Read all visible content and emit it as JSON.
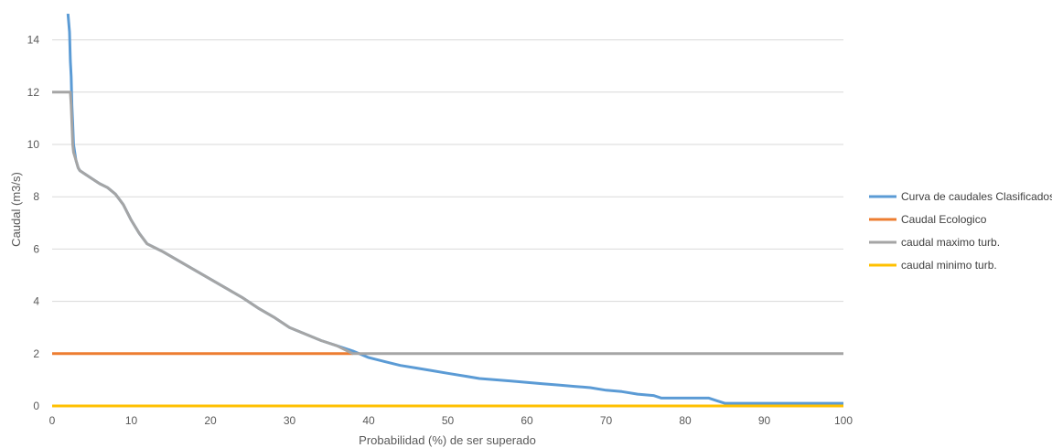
{
  "chart_data": {
    "type": "line",
    "title": "",
    "xlabel": "Probabilidad (%) de ser superado",
    "ylabel": "Caudal (m3/s)",
    "xlim": [
      0,
      100
    ],
    "ylim": [
      0,
      15
    ],
    "xticks": [
      0,
      10,
      20,
      30,
      40,
      50,
      60,
      70,
      80,
      90,
      100
    ],
    "yticks": [
      0,
      2,
      4,
      6,
      8,
      10,
      12,
      14
    ],
    "grid": "horizontal",
    "legend_position": "right",
    "series": [
      {
        "name": "Curva de caudales Clasificados",
        "color": "#5B9BD5",
        "x": [
          2.0,
          2.2,
          2.3,
          2.4,
          2.5,
          2.6,
          2.7,
          3.0,
          3.3,
          3.5,
          4,
          5,
          6,
          7,
          8,
          9,
          10,
          11,
          12,
          13,
          14,
          16,
          18,
          20,
          22,
          24,
          26,
          28,
          30,
          32,
          34,
          36,
          38,
          40,
          42,
          44,
          46,
          48,
          50,
          52,
          54,
          56,
          58,
          60,
          62,
          64,
          66,
          68,
          70,
          72,
          74,
          76,
          77,
          80,
          83,
          84,
          85,
          90,
          95,
          100
        ],
        "y": [
          15.0,
          14.3,
          13.2,
          12.6,
          11.5,
          10.8,
          10.0,
          9.4,
          9.1,
          9.0,
          8.9,
          8.7,
          8.5,
          8.35,
          8.1,
          7.7,
          7.1,
          6.6,
          6.2,
          6.05,
          5.9,
          5.55,
          5.2,
          4.85,
          4.5,
          4.15,
          3.75,
          3.4,
          3.0,
          2.75,
          2.5,
          2.3,
          2.1,
          1.85,
          1.7,
          1.55,
          1.45,
          1.35,
          1.25,
          1.15,
          1.05,
          1.0,
          0.95,
          0.9,
          0.85,
          0.8,
          0.75,
          0.7,
          0.6,
          0.55,
          0.45,
          0.4,
          0.3,
          0.3,
          0.3,
          0.2,
          0.1,
          0.1,
          0.1,
          0.1
        ]
      },
      {
        "name": "Caudal Ecologico",
        "color": "#ED7D31",
        "x": [
          0,
          38
        ],
        "y": [
          2,
          2
        ]
      },
      {
        "name": "caudal maximo turb.",
        "color": "#A5A5A5",
        "x": [
          0,
          2.0,
          2.2,
          2.3,
          2.4,
          2.5,
          2.6,
          2.7,
          3.0,
          3.3,
          3.5,
          4,
          5,
          6,
          7,
          8,
          9,
          10,
          11,
          12,
          13,
          14,
          16,
          18,
          20,
          22,
          24,
          26,
          28,
          30,
          32,
          34,
          36,
          38,
          100
        ],
        "y": [
          12,
          12,
          12,
          12,
          11.5,
          10.8,
          10.0,
          9.7,
          9.4,
          9.1,
          9.0,
          8.9,
          8.7,
          8.5,
          8.35,
          8.1,
          7.7,
          7.1,
          6.6,
          6.2,
          6.05,
          5.9,
          5.55,
          5.2,
          4.85,
          4.5,
          4.15,
          3.75,
          3.4,
          3.0,
          2.75,
          2.5,
          2.3,
          2.0,
          2.0
        ]
      },
      {
        "name": "caudal minimo turb.",
        "color": "#FFC000",
        "x": [
          0,
          100
        ],
        "y": [
          0,
          0
        ]
      }
    ]
  }
}
